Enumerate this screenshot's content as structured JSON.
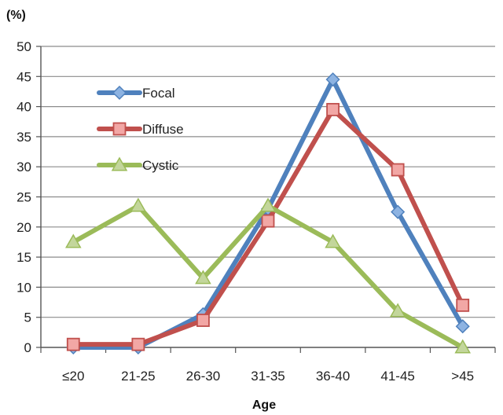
{
  "chart_data": {
    "type": "line",
    "categories": [
      "≤20",
      "21-25",
      "26-30",
      "31-35",
      "36-40",
      "41-45",
      ">45"
    ],
    "series": [
      {
        "name": "Focal",
        "values": [
          0,
          0,
          5.5,
          23,
          44.5,
          22.5,
          3.5
        ],
        "color": "#4f81bd",
        "marker": "diamond"
      },
      {
        "name": "Diffuse",
        "values": [
          0.5,
          0.5,
          4.5,
          21,
          39.5,
          29.5,
          7
        ],
        "color": "#c0504d",
        "marker": "square"
      },
      {
        "name": "Cystic",
        "values": [
          17.5,
          23.5,
          11.5,
          23.5,
          17.5,
          6,
          0
        ],
        "color": "#9bbb59",
        "marker": "triangle"
      }
    ],
    "ylabel": "(%)",
    "xlabel": "Age",
    "ylim": [
      0,
      50
    ],
    "yticks": [
      0,
      5,
      10,
      15,
      20,
      25,
      30,
      35,
      40,
      45,
      50
    ],
    "grid": true,
    "legend_position": "top-left"
  }
}
